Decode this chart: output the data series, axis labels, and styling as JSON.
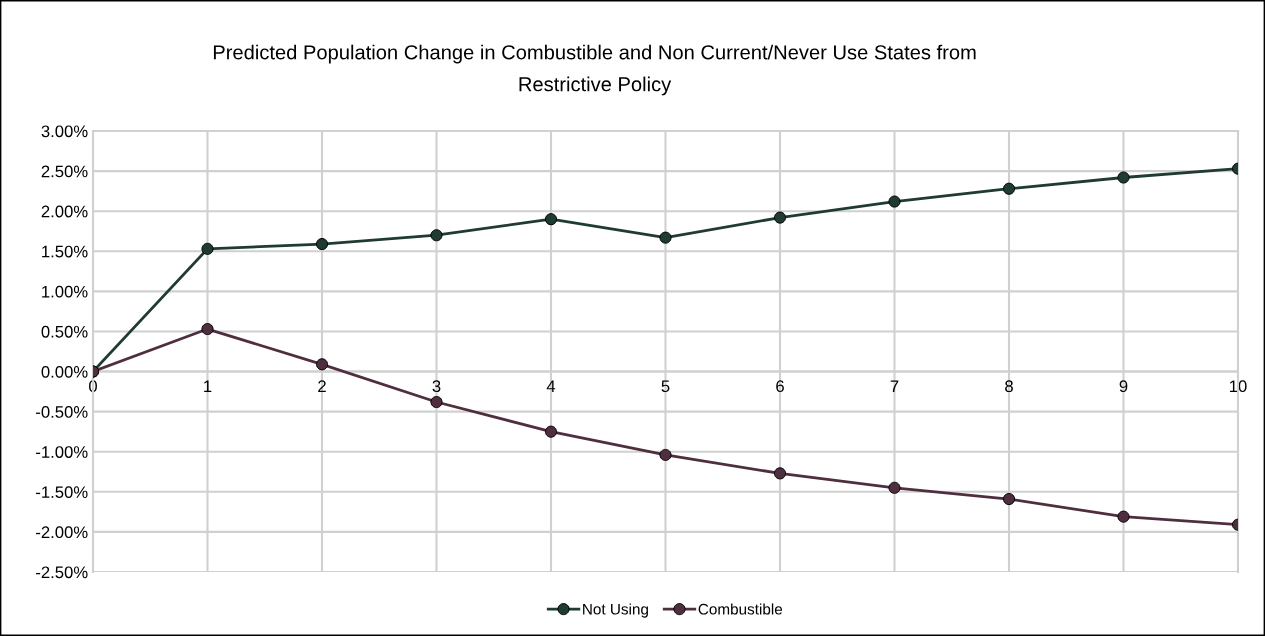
{
  "chart_data": {
    "type": "line",
    "title": "Predicted Population Change in Combustible and Non Current/Never Use States from\nRestrictive Policy",
    "x": [
      0,
      1,
      2,
      3,
      4,
      5,
      6,
      7,
      8,
      9,
      10
    ],
    "series": [
      {
        "name": "Not Using",
        "color": "#1f3b33",
        "values": [
          0,
          1.53,
          1.59,
          1.7,
          1.9,
          1.67,
          1.92,
          2.12,
          2.28,
          2.42,
          2.53
        ]
      },
      {
        "name": "Combustible",
        "color": "#4f2f3f",
        "values": [
          0,
          0.53,
          0.09,
          -0.38,
          -0.75,
          -1.04,
          -1.27,
          -1.45,
          -1.59,
          -1.81,
          -1.91
        ]
      }
    ],
    "xlim": [
      0,
      10
    ],
    "xticks": [
      0,
      1,
      2,
      3,
      4,
      5,
      6,
      7,
      8,
      9,
      10
    ],
    "ylim": [
      -2.5,
      3.0
    ],
    "yticks": [
      {
        "value": -2.5,
        "label": "-2.50%"
      },
      {
        "value": -2.0,
        "label": "-2.00%"
      },
      {
        "value": -1.5,
        "label": "-1.50%"
      },
      {
        "value": -1.0,
        "label": "-1.00%"
      },
      {
        "value": -0.5,
        "label": "-0.50%"
      },
      {
        "value": 0,
        "label": "0.00%"
      },
      {
        "value": 0.5,
        "label": "0.50%"
      },
      {
        "value": 1.0,
        "label": "1.00%"
      },
      {
        "value": 1.5,
        "label": "1.50%"
      },
      {
        "value": 2.0,
        "label": "2.00%"
      },
      {
        "value": 2.5,
        "label": "2.50%"
      },
      {
        "value": 3.0,
        "label": "3.00%"
      }
    ],
    "grid": true,
    "legend": "bottom",
    "marker": "circle",
    "line_style": "solid"
  }
}
